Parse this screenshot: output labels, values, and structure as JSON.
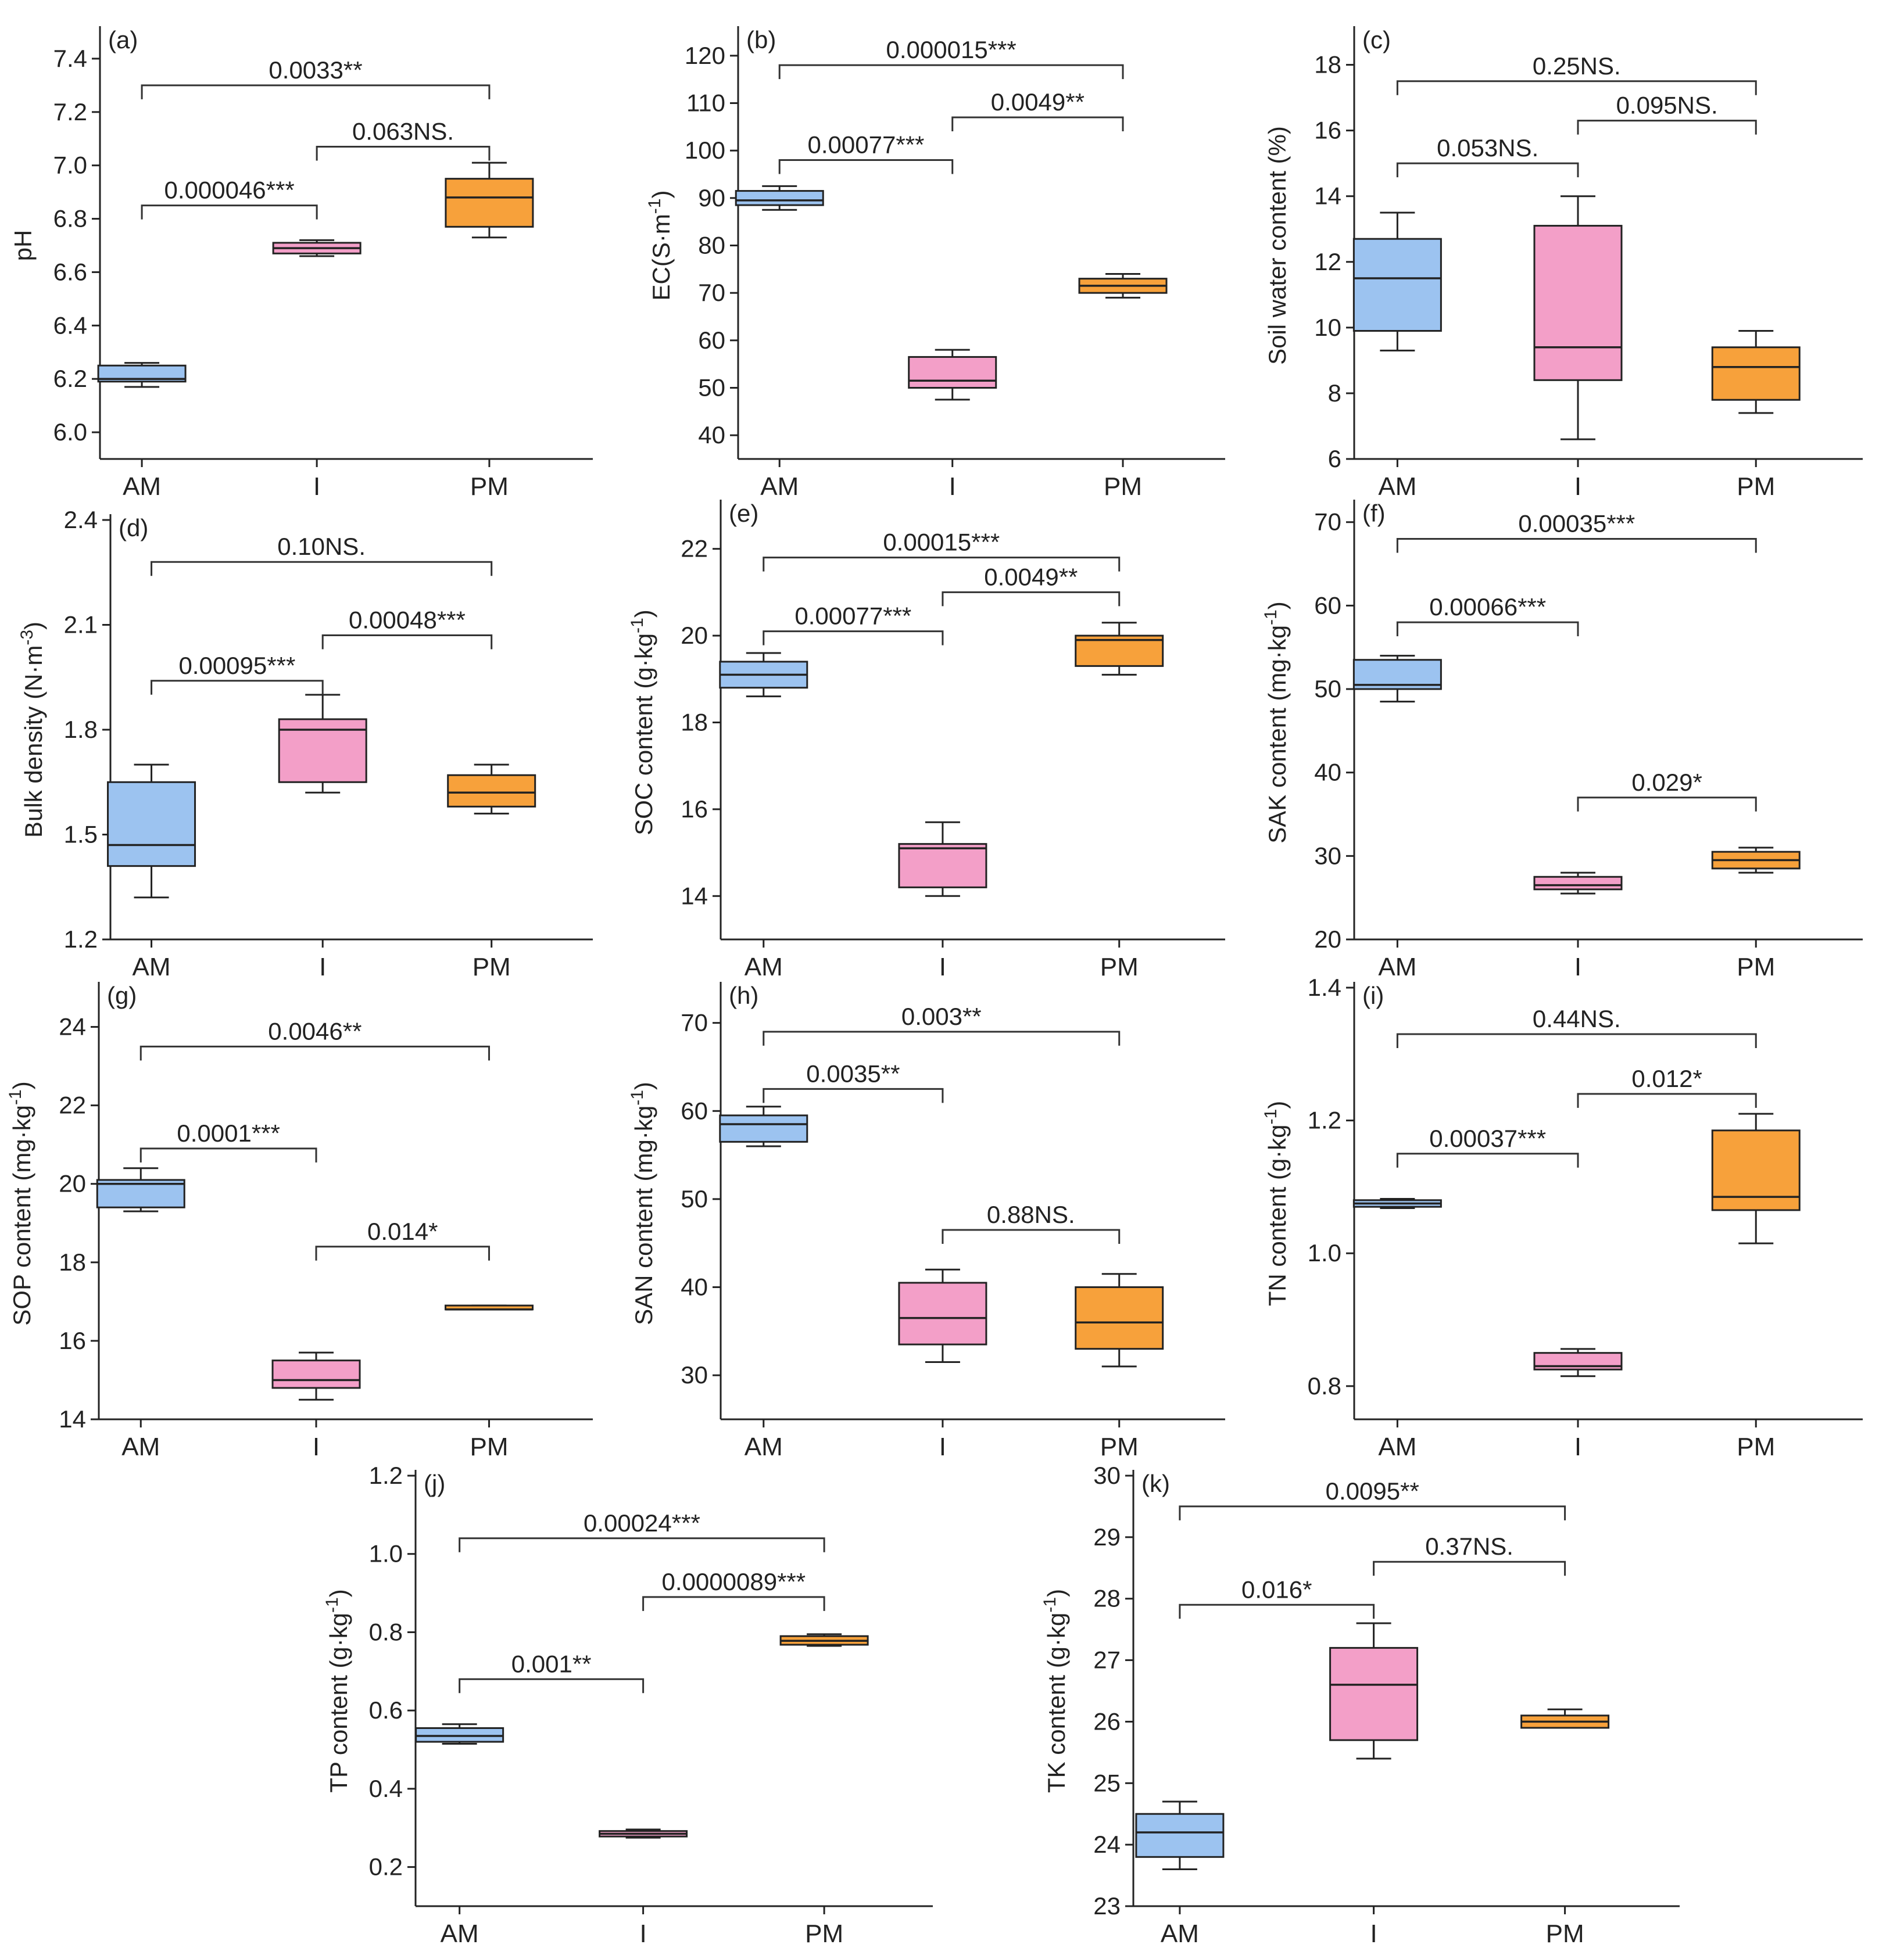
{
  "figure": {
    "colors": {
      "AM": "#9cc3f0",
      "I": "#f39fc8",
      "PM": "#f7a13b",
      "axis": "#222222"
    }
  },
  "chart_data": [
    {
      "id": "a",
      "letter": "(a)",
      "type": "box",
      "ylabel": "pH",
      "ylim": [
        5.9,
        7.5
      ],
      "yticks": [
        6.0,
        6.2,
        6.4,
        6.6,
        6.8,
        7.0,
        7.2,
        7.4
      ],
      "tick_decimals": 1,
      "categories": [
        "AM",
        "I",
        "PM"
      ],
      "boxes": [
        {
          "category": "AM",
          "min": 6.17,
          "q1": 6.19,
          "median": 6.2,
          "q3": 6.25,
          "max": 6.26
        },
        {
          "category": "I",
          "min": 6.66,
          "q1": 6.67,
          "median": 6.69,
          "q3": 6.71,
          "max": 6.72
        },
        {
          "category": "PM",
          "min": 6.73,
          "q1": 6.77,
          "median": 6.88,
          "q3": 6.95,
          "max": 7.01
        }
      ],
      "comparisons": [
        {
          "from": 0,
          "to": 2,
          "y": 7.3,
          "label": "0.0033**"
        },
        {
          "from": 1,
          "to": 2,
          "y": 7.07,
          "label": "0.063NS."
        },
        {
          "from": 0,
          "to": 1,
          "y": 6.85,
          "label": "0.000046***"
        }
      ]
    },
    {
      "id": "b",
      "letter": "(b)",
      "type": "box",
      "ylabel": "EC(S·m",
      "ylabel_sup": "-1",
      "ylabel_end": ")",
      "ylim": [
        35,
        125
      ],
      "yticks": [
        40,
        50,
        60,
        70,
        80,
        90,
        100,
        110,
        120
      ],
      "tick_decimals": 0,
      "categories": [
        "AM",
        "I",
        "PM"
      ],
      "boxes": [
        {
          "category": "AM",
          "min": 87.5,
          "q1": 88.5,
          "median": 89.5,
          "q3": 91.5,
          "max": 92.5
        },
        {
          "category": "I",
          "min": 47.5,
          "q1": 50.0,
          "median": 51.5,
          "q3": 56.5,
          "max": 58.0
        },
        {
          "category": "PM",
          "min": 69.0,
          "q1": 70.0,
          "median": 71.5,
          "q3": 73.0,
          "max": 74.0
        }
      ],
      "comparisons": [
        {
          "from": 0,
          "to": 2,
          "y": 118,
          "label": "0.000015***"
        },
        {
          "from": 1,
          "to": 2,
          "y": 107,
          "label": "0.0049**"
        },
        {
          "from": 0,
          "to": 1,
          "y": 98,
          "label": "0.00077***"
        }
      ]
    },
    {
      "id": "c",
      "letter": "(c)",
      "type": "box",
      "ylabel": "Soil water content (%)",
      "ylim": [
        6,
        19
      ],
      "yticks": [
        6,
        8,
        10,
        12,
        14,
        16,
        18
      ],
      "tick_decimals": 0,
      "categories": [
        "AM",
        "I",
        "PM"
      ],
      "boxes": [
        {
          "category": "AM",
          "min": 9.3,
          "q1": 9.9,
          "median": 11.5,
          "q3": 12.7,
          "max": 13.5
        },
        {
          "category": "I",
          "min": 6.6,
          "q1": 8.4,
          "median": 9.4,
          "q3": 13.1,
          "max": 14.0
        },
        {
          "category": "PM",
          "min": 7.4,
          "q1": 7.8,
          "median": 8.8,
          "q3": 9.4,
          "max": 9.9
        }
      ],
      "comparisons": [
        {
          "from": 0,
          "to": 2,
          "y": 17.5,
          "label": "0.25NS."
        },
        {
          "from": 1,
          "to": 2,
          "y": 16.3,
          "label": "0.095NS."
        },
        {
          "from": 0,
          "to": 1,
          "y": 15.0,
          "label": "0.053NS."
        }
      ]
    },
    {
      "id": "d",
      "letter": "(d)",
      "type": "box",
      "ylabel": "Bulk density (N·m",
      "ylabel_sup": "-3",
      "ylabel_end": ")",
      "ylim": [
        1.2,
        2.4
      ],
      "yticks": [
        1.2,
        1.5,
        1.8,
        2.1,
        2.4
      ],
      "tick_decimals": 1,
      "categories": [
        "AM",
        "I",
        "PM"
      ],
      "boxes": [
        {
          "category": "AM",
          "min": 1.32,
          "q1": 1.41,
          "median": 1.47,
          "q3": 1.65,
          "max": 1.7
        },
        {
          "category": "I",
          "min": 1.62,
          "q1": 1.65,
          "median": 1.8,
          "q3": 1.83,
          "max": 1.9
        },
        {
          "category": "PM",
          "min": 1.56,
          "q1": 1.58,
          "median": 1.62,
          "q3": 1.67,
          "max": 1.7
        }
      ],
      "comparisons": [
        {
          "from": 0,
          "to": 2,
          "y": 2.28,
          "label": "0.10NS."
        },
        {
          "from": 1,
          "to": 2,
          "y": 2.07,
          "label": "0.00048***"
        },
        {
          "from": 0,
          "to": 1,
          "y": 1.94,
          "label": "0.00095***"
        }
      ]
    },
    {
      "id": "e",
      "letter": "(e)",
      "type": "box",
      "ylabel": "SOC content (g·kg",
      "ylabel_sup": "-1",
      "ylabel_end": ")",
      "ylim": [
        13,
        23
      ],
      "yticks": [
        14,
        16,
        18,
        20,
        22
      ],
      "tick_decimals": 0,
      "categories": [
        "AM",
        "I",
        "PM"
      ],
      "boxes": [
        {
          "category": "AM",
          "min": 18.6,
          "q1": 18.8,
          "median": 19.1,
          "q3": 19.4,
          "max": 19.6
        },
        {
          "category": "I",
          "min": 14.0,
          "q1": 14.2,
          "median": 15.1,
          "q3": 15.2,
          "max": 15.7
        },
        {
          "category": "PM",
          "min": 19.1,
          "q1": 19.3,
          "median": 19.9,
          "q3": 20.0,
          "max": 20.3
        }
      ],
      "comparisons": [
        {
          "from": 0,
          "to": 2,
          "y": 21.8,
          "label": "0.00015***"
        },
        {
          "from": 1,
          "to": 2,
          "y": 21.0,
          "label": "0.0049**"
        },
        {
          "from": 0,
          "to": 1,
          "y": 20.1,
          "label": "0.00077***"
        }
      ]
    },
    {
      "id": "f",
      "letter": "(f)",
      "type": "box",
      "ylabel": "SAK content (mg·kg",
      "ylabel_sup": "-1",
      "ylabel_end": ")",
      "ylim": [
        20,
        72
      ],
      "yticks": [
        20,
        30,
        40,
        50,
        60,
        70
      ],
      "tick_decimals": 0,
      "categories": [
        "AM",
        "I",
        "PM"
      ],
      "boxes": [
        {
          "category": "AM",
          "min": 48.5,
          "q1": 50.0,
          "median": 50.5,
          "q3": 53.5,
          "max": 54.0
        },
        {
          "category": "I",
          "min": 25.5,
          "q1": 26.0,
          "median": 26.5,
          "q3": 27.5,
          "max": 28.0
        },
        {
          "category": "PM",
          "min": 28.0,
          "q1": 28.5,
          "median": 29.5,
          "q3": 30.5,
          "max": 31.0
        }
      ],
      "comparisons": [
        {
          "from": 0,
          "to": 2,
          "y": 68,
          "label": "0.00035***"
        },
        {
          "from": 0,
          "to": 1,
          "y": 58,
          "label": "0.00066***"
        },
        {
          "from": 1,
          "to": 2,
          "y": 37,
          "label": "0.029*"
        }
      ]
    },
    {
      "id": "g",
      "letter": "(g)",
      "type": "box",
      "ylabel": "SOP content (mg·kg",
      "ylabel_sup": "-1",
      "ylabel_end": ")",
      "ylim": [
        14,
        25
      ],
      "yticks": [
        14,
        16,
        18,
        20,
        22,
        24
      ],
      "tick_decimals": 0,
      "categories": [
        "AM",
        "I",
        "PM"
      ],
      "boxes": [
        {
          "category": "AM",
          "min": 19.3,
          "q1": 19.4,
          "median": 20.0,
          "q3": 20.1,
          "max": 20.4
        },
        {
          "category": "I",
          "min": 14.5,
          "q1": 14.8,
          "median": 15.0,
          "q3": 15.5,
          "max": 15.7
        },
        {
          "category": "PM",
          "min": 16.8,
          "q1": 16.8,
          "median": 16.8,
          "q3": 16.9,
          "max": 16.9
        }
      ],
      "comparisons": [
        {
          "from": 0,
          "to": 2,
          "y": 23.5,
          "label": "0.0046**"
        },
        {
          "from": 0,
          "to": 1,
          "y": 20.9,
          "label": "0.0001***"
        },
        {
          "from": 1,
          "to": 2,
          "y": 18.4,
          "label": "0.014*"
        }
      ]
    },
    {
      "id": "h",
      "letter": "(h)",
      "type": "box",
      "ylabel": "SAN content (mg·kg",
      "ylabel_sup": "-1",
      "ylabel_end": ")",
      "ylim": [
        25,
        74
      ],
      "yticks": [
        30,
        40,
        50,
        60,
        70
      ],
      "tick_decimals": 0,
      "categories": [
        "AM",
        "I",
        "PM"
      ],
      "boxes": [
        {
          "category": "AM",
          "min": 56.0,
          "q1": 56.5,
          "median": 58.5,
          "q3": 59.5,
          "max": 60.5
        },
        {
          "category": "I",
          "min": 31.5,
          "q1": 33.5,
          "median": 36.5,
          "q3": 40.5,
          "max": 42.0
        },
        {
          "category": "PM",
          "min": 31.0,
          "q1": 33.0,
          "median": 36.0,
          "q3": 40.0,
          "max": 41.5
        }
      ],
      "comparisons": [
        {
          "from": 0,
          "to": 2,
          "y": 69,
          "label": "0.003**"
        },
        {
          "from": 0,
          "to": 1,
          "y": 62.5,
          "label": "0.0035**"
        },
        {
          "from": 1,
          "to": 2,
          "y": 46.5,
          "label": "0.88NS."
        }
      ]
    },
    {
      "id": "i",
      "letter": "(i)",
      "type": "box",
      "ylabel": "TN content (g·kg",
      "ylabel_sup": "-1",
      "ylabel_end": ")",
      "ylim": [
        0.75,
        1.4
      ],
      "yticks": [
        0.8,
        1.0,
        1.2,
        1.4
      ],
      "tick_decimals": 1,
      "categories": [
        "AM",
        "I",
        "PM"
      ],
      "boxes": [
        {
          "category": "AM",
          "min": 1.068,
          "q1": 1.07,
          "median": 1.075,
          "q3": 1.08,
          "max": 1.082
        },
        {
          "category": "I",
          "min": 0.815,
          "q1": 0.825,
          "median": 0.83,
          "q3": 0.85,
          "max": 0.856
        },
        {
          "category": "PM",
          "min": 1.015,
          "q1": 1.065,
          "median": 1.085,
          "q3": 1.185,
          "max": 1.21
        }
      ],
      "comparisons": [
        {
          "from": 0,
          "to": 2,
          "y": 1.33,
          "label": "0.44NS."
        },
        {
          "from": 1,
          "to": 2,
          "y": 1.24,
          "label": "0.012*"
        },
        {
          "from": 0,
          "to": 1,
          "y": 1.15,
          "label": "0.00037***"
        }
      ]
    },
    {
      "id": "j",
      "letter": "(j)",
      "type": "box",
      "ylabel": "TP content (g·kg",
      "ylabel_sup": "-1",
      "ylabel_end": ")",
      "ylim": [
        0.1,
        1.2
      ],
      "yticks": [
        0.2,
        0.4,
        0.6,
        0.8,
        1.0,
        1.2
      ],
      "tick_decimals": 1,
      "categories": [
        "AM",
        "I",
        "PM"
      ],
      "boxes": [
        {
          "category": "AM",
          "min": 0.515,
          "q1": 0.52,
          "median": 0.535,
          "q3": 0.555,
          "max": 0.565
        },
        {
          "category": "I",
          "min": 0.275,
          "q1": 0.278,
          "median": 0.285,
          "q3": 0.292,
          "max": 0.296
        },
        {
          "category": "PM",
          "min": 0.765,
          "q1": 0.768,
          "median": 0.778,
          "q3": 0.79,
          "max": 0.795
        }
      ],
      "comparisons": [
        {
          "from": 0,
          "to": 2,
          "y": 1.04,
          "label": "0.00024***"
        },
        {
          "from": 1,
          "to": 2,
          "y": 0.89,
          "label": "0.0000089***"
        },
        {
          "from": 0,
          "to": 1,
          "y": 0.68,
          "label": "0.001**"
        }
      ]
    },
    {
      "id": "k",
      "letter": "(k)",
      "type": "box",
      "ylabel": "TK content (g·kg",
      "ylabel_sup": "-1",
      "ylabel_end": ")",
      "ylim": [
        23,
        30
      ],
      "yticks": [
        23,
        24,
        25,
        26,
        27,
        28,
        29,
        30
      ],
      "tick_decimals": 0,
      "categories": [
        "AM",
        "I",
        "PM"
      ],
      "boxes": [
        {
          "category": "AM",
          "min": 23.6,
          "q1": 23.8,
          "median": 24.2,
          "q3": 24.5,
          "max": 24.7
        },
        {
          "category": "I",
          "min": 25.4,
          "q1": 25.7,
          "median": 26.6,
          "q3": 27.2,
          "max": 27.6
        },
        {
          "category": "PM",
          "min": 25.9,
          "q1": 25.9,
          "median": 26.0,
          "q3": 26.1,
          "max": 26.2
        }
      ],
      "comparisons": [
        {
          "from": 0,
          "to": 2,
          "y": 29.5,
          "label": "0.0095**"
        },
        {
          "from": 1,
          "to": 2,
          "y": 28.6,
          "label": "0.37NS."
        },
        {
          "from": 0,
          "to": 1,
          "y": 27.9,
          "label": "0.016*"
        }
      ]
    }
  ]
}
